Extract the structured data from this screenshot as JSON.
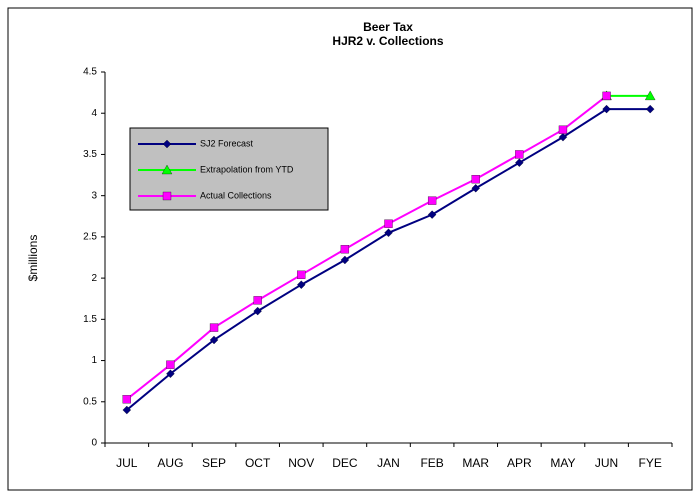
{
  "chart_data": {
    "type": "line",
    "title": "Beer Tax",
    "subtitle": "HJR2 v. Collections",
    "y_label": "$millions",
    "categories": [
      "JUL",
      "AUG",
      "SEP",
      "OCT",
      "NOV",
      "DEC",
      "JAN",
      "FEB",
      "MAR",
      "APR",
      "MAY",
      "JUN",
      "FYE"
    ],
    "series": [
      {
        "name": "SJ2 Forecast",
        "color": "#000080",
        "marker": "diamond",
        "values": [
          0.4,
          0.84,
          1.25,
          1.6,
          1.92,
          2.22,
          2.55,
          2.77,
          3.09,
          3.4,
          3.71,
          4.05,
          4.05
        ]
      },
      {
        "name": "Extrapolation from YTD",
        "color": "#00ff00",
        "marker": "triangle",
        "values": [
          null,
          null,
          null,
          null,
          null,
          null,
          null,
          null,
          null,
          null,
          null,
          4.21,
          4.21
        ]
      },
      {
        "name": "Actual Collections",
        "color": "#ff00ff",
        "marker": "square",
        "values": [
          0.53,
          0.95,
          1.4,
          1.73,
          2.04,
          2.35,
          2.66,
          2.94,
          3.2,
          3.5,
          3.8,
          4.21,
          null
        ]
      }
    ],
    "ylim": [
      0,
      4.5
    ],
    "yticks": [
      0,
      0.5,
      1,
      1.5,
      2,
      2.5,
      3,
      3.5,
      4,
      4.5
    ],
    "grid": false,
    "legend": "upper left"
  }
}
